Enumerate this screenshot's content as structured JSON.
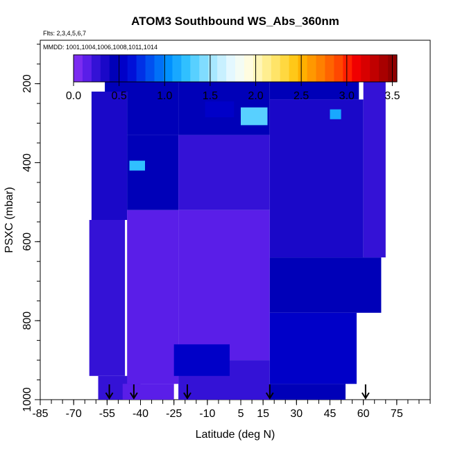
{
  "chart_data": {
    "type": "heatmap",
    "title": "ATOM3 Southbound WS_Abs_360nm",
    "flights_label": "Flts: 2,3,4,5,6,7",
    "mmdd_label": "MMDD: 1001,1004,1006,1008,1011,1014",
    "xlabel": "Latitude (deg N)",
    "ylabel": "PSXC (mbar)",
    "xlim": [
      -85,
      90
    ],
    "ylim": [
      1000,
      90
    ],
    "x_ticks": [
      -85,
      -70,
      -55,
      -40,
      -25,
      -10,
      5,
      15,
      30,
      45,
      60,
      75
    ],
    "y_ticks": [
      200,
      400,
      600,
      800,
      1000
    ],
    "colorbar": {
      "min": 0.0,
      "max": 3.55,
      "ticks": [
        "0.0",
        "0.5",
        "1.0",
        "1.5",
        "2.0",
        "2.5",
        "3.0",
        "3.5"
      ],
      "tick_values": [
        0.0,
        0.5,
        1.0,
        1.5,
        2.0,
        2.5,
        3.0,
        3.5
      ],
      "bands": [
        {
          "value": 0.05,
          "color": "#7b2cf0"
        },
        {
          "value": 0.15,
          "color": "#5a1ee8"
        },
        {
          "value": 0.25,
          "color": "#3412d6"
        },
        {
          "value": 0.35,
          "color": "#1a08c8"
        },
        {
          "value": 0.45,
          "color": "#0000b8"
        },
        {
          "value": 0.55,
          "color": "#0000c8"
        },
        {
          "value": 0.65,
          "color": "#0010d8"
        },
        {
          "value": 0.75,
          "color": "#0030e6"
        },
        {
          "value": 0.85,
          "color": "#0050f0"
        },
        {
          "value": 0.95,
          "color": "#0070f8"
        },
        {
          "value": 1.05,
          "color": "#0090ff"
        },
        {
          "value": 1.15,
          "color": "#18a8ff"
        },
        {
          "value": 1.25,
          "color": "#30c0ff"
        },
        {
          "value": 1.35,
          "color": "#58d0ff"
        },
        {
          "value": 1.45,
          "color": "#80dcff"
        },
        {
          "value": 1.55,
          "color": "#a8e8ff"
        },
        {
          "value": 1.65,
          "color": "#c8f0ff"
        },
        {
          "value": 1.75,
          "color": "#e4f8ff"
        },
        {
          "value": 1.85,
          "color": "#f4fcf4"
        },
        {
          "value": 1.95,
          "color": "#fffce0"
        },
        {
          "value": 2.05,
          "color": "#fff6b8"
        },
        {
          "value": 2.15,
          "color": "#ffee90"
        },
        {
          "value": 2.25,
          "color": "#ffe468"
        },
        {
          "value": 2.35,
          "color": "#ffd840"
        },
        {
          "value": 2.45,
          "color": "#ffc818"
        },
        {
          "value": 2.55,
          "color": "#ffb000"
        },
        {
          "value": 2.65,
          "color": "#ff9800"
        },
        {
          "value": 2.75,
          "color": "#ff8000"
        },
        {
          "value": 2.85,
          "color": "#ff6400"
        },
        {
          "value": 2.95,
          "color": "#ff4800"
        },
        {
          "value": 3.05,
          "color": "#ff2000"
        },
        {
          "value": 3.15,
          "color": "#f00000"
        },
        {
          "value": 3.25,
          "color": "#d80000"
        },
        {
          "value": 3.35,
          "color": "#c00000"
        },
        {
          "value": 3.45,
          "color": "#a80000"
        },
        {
          "value": 3.52,
          "color": "#900000"
        }
      ]
    },
    "arrow_latitudes": [
      -54,
      -43,
      -19,
      18,
      61
    ],
    "profiles": [
      {
        "lat_start": -62,
        "lat_end": -46,
        "p_top": 220,
        "p_bottom": 545,
        "value": 0.35
      },
      {
        "lat_start": -63,
        "lat_end": -47,
        "p_top": 545,
        "p_bottom": 940,
        "value": 0.25
      },
      {
        "lat_start": -59,
        "lat_end": -40,
        "p_top": 940,
        "p_bottom": 1000,
        "value": 0.22
      },
      {
        "lat_start": -56,
        "lat_end": -45,
        "p_top": 175,
        "p_bottom": 220,
        "value": 0.45
      },
      {
        "lat_start": -46,
        "lat_end": -23,
        "p_top": 175,
        "p_bottom": 330,
        "value": 0.45
      },
      {
        "lat_start": -46,
        "lat_end": -23,
        "p_top": 330,
        "p_bottom": 520,
        "value": 0.4
      },
      {
        "lat_start": -46,
        "lat_end": -23,
        "p_top": 520,
        "p_bottom": 960,
        "value": 0.12
      },
      {
        "lat_start": -48,
        "lat_end": -25,
        "p_top": 960,
        "p_bottom": 1000,
        "value": 0.15
      },
      {
        "lat_start": -23,
        "lat_end": 18,
        "p_top": 175,
        "p_bottom": 330,
        "value": 0.45
      },
      {
        "lat_start": -23,
        "lat_end": 18,
        "p_top": 330,
        "p_bottom": 520,
        "value": 0.25
      },
      {
        "lat_start": -23,
        "lat_end": 18,
        "p_top": 520,
        "p_bottom": 900,
        "value": 0.1
      },
      {
        "lat_start": -23,
        "lat_end": 18,
        "p_top": 900,
        "p_bottom": 1000,
        "value": 0.3
      },
      {
        "lat_start": 18,
        "lat_end": 58,
        "p_top": 175,
        "p_bottom": 240,
        "value": 0.45
      },
      {
        "lat_start": 18,
        "lat_end": 60,
        "p_top": 240,
        "p_bottom": 640,
        "value": 0.35
      },
      {
        "lat_start": 18,
        "lat_end": 68,
        "p_top": 640,
        "p_bottom": 780,
        "value": 0.4
      },
      {
        "lat_start": 18,
        "lat_end": 57,
        "p_top": 780,
        "p_bottom": 960,
        "value": 0.55
      },
      {
        "lat_start": 18,
        "lat_end": 52,
        "p_top": 960,
        "p_bottom": 1000,
        "value": 0.45
      },
      {
        "lat_start": 60,
        "lat_end": 70,
        "p_top": 170,
        "p_bottom": 640,
        "value": 0.3
      },
      {
        "lat_start": -45,
        "lat_end": -38,
        "p_top": 395,
        "p_bottom": 420,
        "value": 1.25
      },
      {
        "lat_start": 5,
        "lat_end": 17,
        "p_top": 260,
        "p_bottom": 305,
        "value": 1.4
      },
      {
        "lat_start": 45,
        "lat_end": 50,
        "p_top": 265,
        "p_bottom": 290,
        "value": 1.1
      },
      {
        "lat_start": -11,
        "lat_end": 2,
        "p_top": 245,
        "p_bottom": 285,
        "value": 0.6
      },
      {
        "lat_start": -25,
        "lat_end": 0,
        "p_top": 860,
        "p_bottom": 940,
        "value": 0.55
      }
    ]
  }
}
